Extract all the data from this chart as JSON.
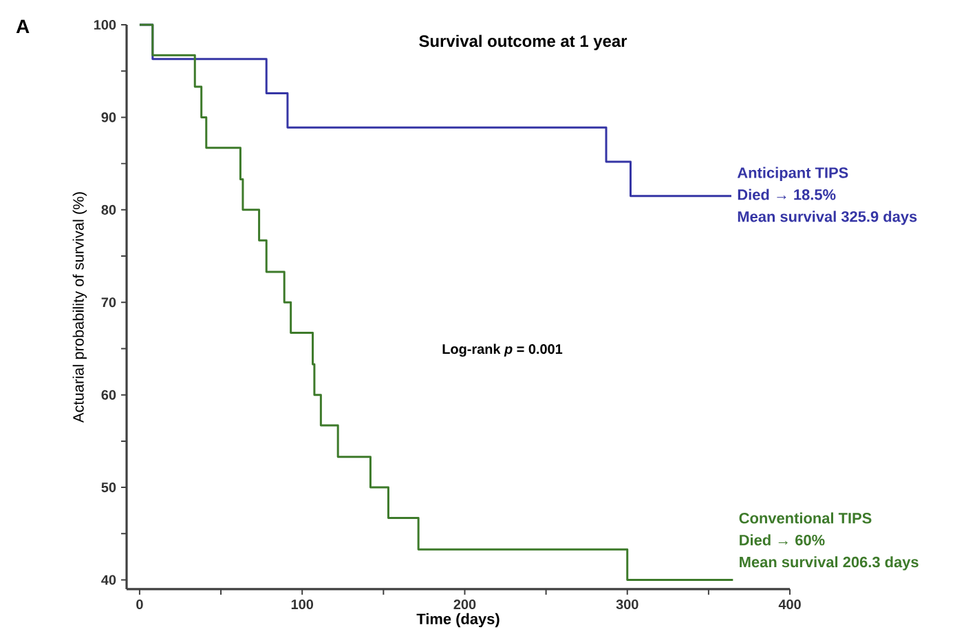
{
  "chart_data": {
    "type": "step",
    "title": "Survival outcome at 1 year",
    "xlabel": "Time (days)",
    "ylabel": "Actuarial probability of survival (%)",
    "xlim": [
      -8,
      400
    ],
    "ylim": [
      39,
      100
    ],
    "xticks": [
      0,
      {
        "value": 50,
        "label": null
      },
      100,
      {
        "value": 150,
        "label": null
      },
      200,
      {
        "value": 250,
        "label": null
      },
      300,
      {
        "value": 350,
        "label": null
      },
      400
    ],
    "yticks": [
      40,
      {
        "value": 45,
        "label": null
      },
      50,
      {
        "value": 55,
        "label": null
      },
      60,
      {
        "value": 65,
        "label": null
      },
      70,
      {
        "value": 75,
        "label": null
      },
      80,
      {
        "value": 85,
        "label": null
      },
      90,
      {
        "value": 95,
        "label": null
      },
      100
    ],
    "series": [
      {
        "name": "Anticipant TIPS",
        "color": "#3535a5",
        "x": [
          0,
          8,
          78,
          91,
          287,
          302,
          364
        ],
        "values": [
          100,
          96.3,
          92.6,
          88.9,
          85.2,
          81.5,
          81.5
        ]
      },
      {
        "name": "Conventional TIPS",
        "color": "#3d7a2a",
        "x": [
          0,
          8,
          34,
          38,
          41,
          62,
          63.5,
          73.5,
          78,
          89,
          93,
          106.5,
          107.5,
          111.5,
          122,
          142,
          153,
          171.5,
          300,
          365
        ],
        "values": [
          100,
          96.7,
          93.3,
          90,
          86.7,
          83.3,
          80,
          76.7,
          73.3,
          70,
          66.7,
          63.3,
          60,
          56.7,
          53.3,
          50,
          46.7,
          43.3,
          40,
          40
        ]
      }
    ],
    "annotations": [
      "A",
      "Log-rank *p* = 0.001",
      "Died → 18.5%",
      "Mean survival 325.9 days",
      "Died → 60%",
      "Mean survival 206.3 days"
    ],
    "grid": false,
    "marker": "none",
    "line_style": "solid"
  }
}
